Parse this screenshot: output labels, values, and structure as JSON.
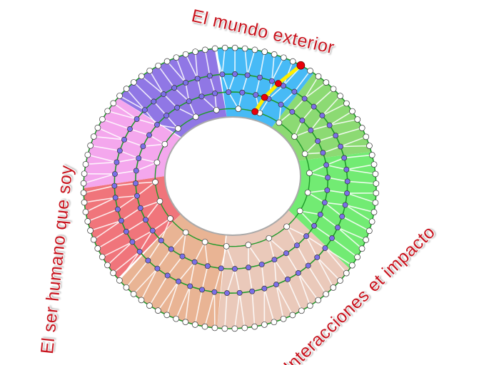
{
  "labels": {
    "top": "El mundo exterior",
    "left": "El ser humano que soy",
    "bottom_right": "Interacciones et impacto"
  },
  "colors": {
    "label": "#c8141e",
    "ring_line": "#1f9a2a",
    "node_fill": "#7b6fe8",
    "outer_node_fill": "#ffffff",
    "path_highlight": "#ffee00",
    "path_node": "#e8000b",
    "sectors": [
      "#3db6f6",
      "#86d86c",
      "#6aea6c",
      "#e9c6b6",
      "#e8b08e",
      "#ef6e74",
      "#f3a2ec",
      "#8a70e4"
    ]
  },
  "icons": [
    "ring-diagram"
  ]
}
